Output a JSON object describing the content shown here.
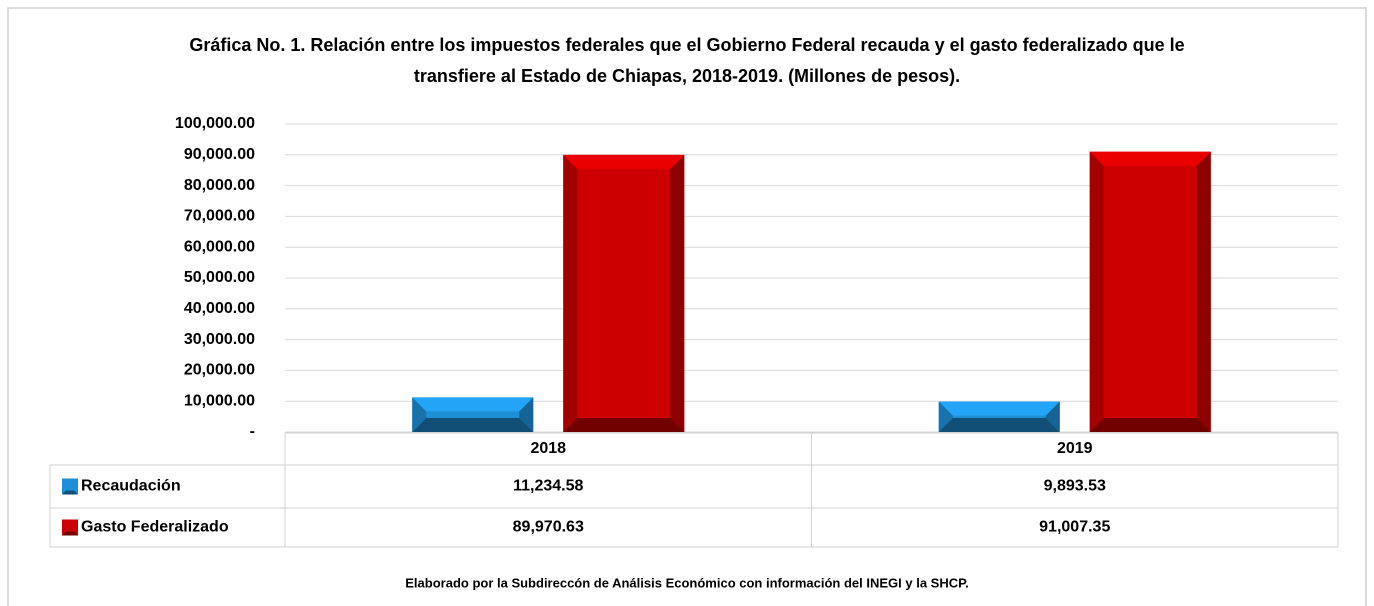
{
  "chart_data": {
    "type": "bar",
    "title": "Gráfica No. 1. Relación entre los impuestos federales que el Gobierno Federal recauda y el gasto federalizado que le transfiere al Estado de Chiapas, 2018-2019. (Millones de pesos).",
    "categories": [
      "2018",
      "2019"
    ],
    "series": [
      {
        "name": "Recaudación",
        "color": "#1f8fd6",
        "values": [
          11234.58,
          9893.53
        ],
        "value_labels": [
          "11,234.58",
          "9,893.53"
        ]
      },
      {
        "name": "Gasto Federalizado",
        "color": "#cc0000",
        "values": [
          89970.63,
          91007.35
        ],
        "value_labels": [
          "89,970.63",
          "91,007.35"
        ]
      }
    ],
    "ylim": [
      0,
      100000
    ],
    "yticks": [
      {
        "value": 0,
        "label": "-"
      },
      {
        "value": 10000,
        "label": "10,000.00"
      },
      {
        "value": 20000,
        "label": "20,000.00"
      },
      {
        "value": 30000,
        "label": "30,000.00"
      },
      {
        "value": 40000,
        "label": "40,000.00"
      },
      {
        "value": 50000,
        "label": "50,000.00"
      },
      {
        "value": 60000,
        "label": "60,000.00"
      },
      {
        "value": 70000,
        "label": "70,000.00"
      },
      {
        "value": 80000,
        "label": "80,000.00"
      },
      {
        "value": 90000,
        "label": "90,000.00"
      },
      {
        "value": 100000,
        "label": "100,000.00"
      }
    ],
    "grid": true,
    "note": "Elaborado por la Subdireccón de Análisis Económico con información del INEGI y la SHCP."
  }
}
